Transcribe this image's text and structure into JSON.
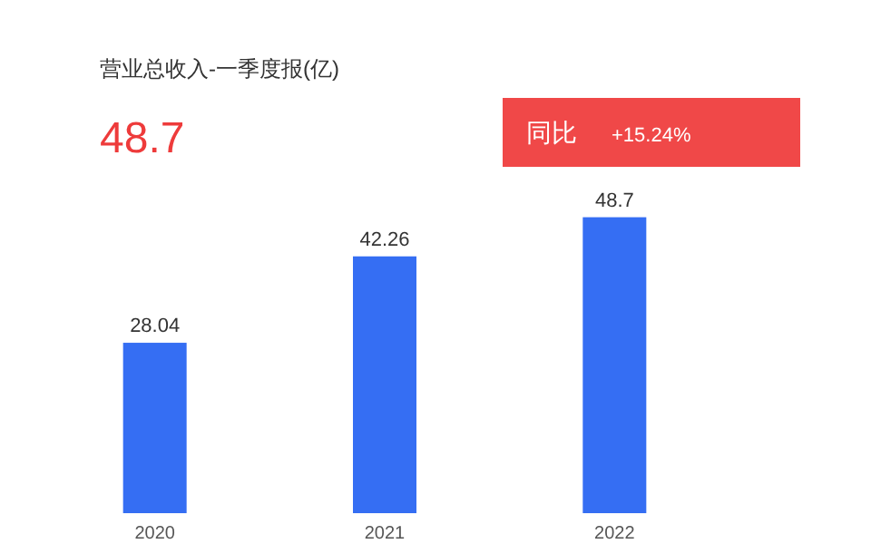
{
  "chart_data": {
    "type": "bar",
    "title": "营业总收入-一季度报(亿)",
    "annotations": [
      "48.7",
      "同比",
      "+15.24%"
    ],
    "categories": [
      "2020",
      "2021",
      "2022"
    ],
    "values": [
      28.04,
      42.26,
      48.7
    ],
    "color": "#356ef3",
    "data_labels": true
  }
}
